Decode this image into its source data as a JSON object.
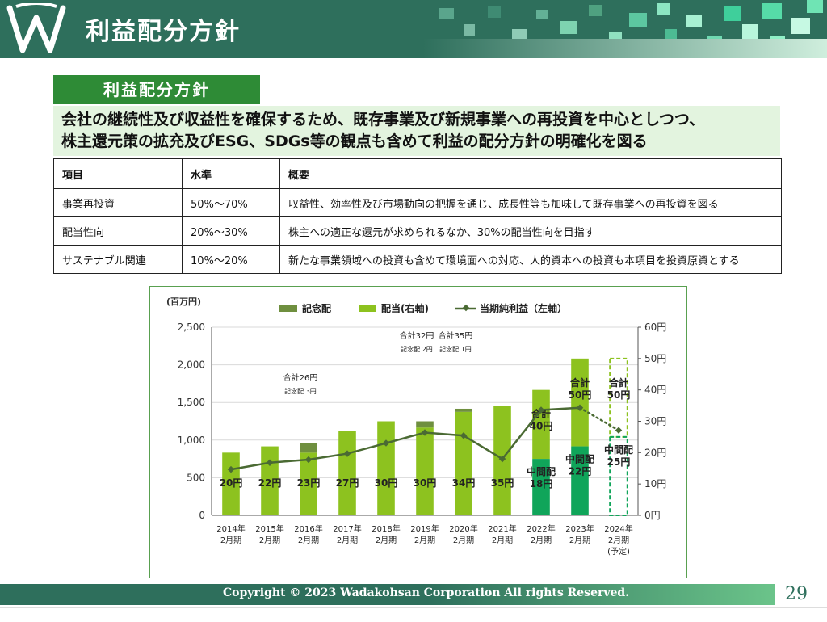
{
  "header": {
    "title": "利益配分方針"
  },
  "section_label": "利益配分方針",
  "lead": {
    "line1": "会社の継続性及び収益性を確保するため、既存事業及び新規事業への再投資を中心としつつ、",
    "line2": "株主還元策の拡充及びESG、SDGs等の観点も含めて利益の配分方針の明確化を図る"
  },
  "table": {
    "headers": [
      "項目",
      "水準",
      "概要"
    ],
    "rows": [
      [
        "事業再投資",
        "50%～70%",
        "収益性、効率性及び市場動向の把握を通じ、成長性等も加味して既存事業への再投資を図る"
      ],
      [
        "配当性向",
        "20%～30%",
        "株主への適正な還元が求められるなか、30%の配当性向を目指す"
      ],
      [
        "サステナブル関連",
        "10%～20%",
        "新たな事業領域への投資も含めて環境面への対応、人的資本への投資も本項目を投資原資とする"
      ]
    ]
  },
  "chart_data": {
    "type": "bar",
    "unit_label": "(百万円)",
    "legend": [
      "記念配",
      "配当(右軸)",
      "当期純利益（左軸）"
    ],
    "categories": [
      [
        "2014年",
        "2月期"
      ],
      [
        "2015年",
        "2月期"
      ],
      [
        "2016年",
        "2月期"
      ],
      [
        "2017年",
        "2月期"
      ],
      [
        "2018年",
        "2月期"
      ],
      [
        "2019年",
        "2月期"
      ],
      [
        "2020年",
        "2月期"
      ],
      [
        "2021年",
        "2月期"
      ],
      [
        "2022年",
        "2月期"
      ],
      [
        "2023年",
        "2月期"
      ],
      [
        "2024年",
        "2月期",
        "(予定)"
      ]
    ],
    "left_axis": {
      "min": 0,
      "max": 2500,
      "ticks": [
        "0",
        "500",
        "1,000",
        "1,500",
        "2,000",
        "2,500"
      ]
    },
    "right_axis": {
      "min": 0,
      "max": 60,
      "ticks": [
        "0円",
        "10円",
        "20円",
        "30円",
        "40円",
        "50円",
        "60円"
      ]
    },
    "dividend_regular": [
      20,
      22,
      23,
      27,
      30,
      30,
      34,
      35,
      40,
      50,
      50
    ],
    "dividend_interim": [
      null,
      null,
      null,
      null,
      null,
      null,
      null,
      null,
      18,
      22,
      25
    ],
    "dividend_commemorative": [
      0,
      0,
      3,
      0,
      0,
      2,
      1,
      0,
      0,
      0,
      0
    ],
    "net_income": [
      610,
      700,
      740,
      820,
      960,
      1100,
      1060,
      750,
      1400,
      1430,
      1130
    ],
    "forecast_index": 10,
    "bar_labels": [
      "20円",
      "22円",
      "23円",
      "27円",
      "30円",
      "30円",
      "34円",
      "35円",
      "",
      "",
      ""
    ],
    "total_labels": [
      {
        "index": 8,
        "lines": [
          "合計",
          "40円"
        ]
      },
      {
        "index": 9,
        "lines": [
          "合計",
          "50円"
        ]
      },
      {
        "index": 10,
        "lines": [
          "合計",
          "50円"
        ]
      }
    ],
    "interim_labels": [
      {
        "index": 8,
        "lines": [
          "中間配",
          "18円"
        ]
      },
      {
        "index": 9,
        "lines": [
          "中間配",
          "22円"
        ]
      },
      {
        "index": 10,
        "lines": [
          "中間配",
          "25円"
        ]
      }
    ],
    "annotations": [
      {
        "index": 2,
        "total": "合計26円",
        "commemorative": "記念配 3円"
      },
      {
        "index": 5,
        "total": "合計32円",
        "commemorative": "記念配 2円"
      },
      {
        "index": 6,
        "total": "合計35円",
        "commemorative": "記念配 1円"
      }
    ],
    "colors": {
      "regular": "#8dc21f",
      "regular_interim_upper": "#8dc21f",
      "interim": "#10a55a",
      "commemorative": "#6f8f3f",
      "line": "#4a6a33",
      "forecast_outline_upper": "#8dc21f",
      "forecast_outline_lower": "#10a55a"
    }
  },
  "footer": {
    "copyright": "Copyright © 2023  Wadakohsan Corporation All rights Reserved.",
    "page": "29"
  }
}
